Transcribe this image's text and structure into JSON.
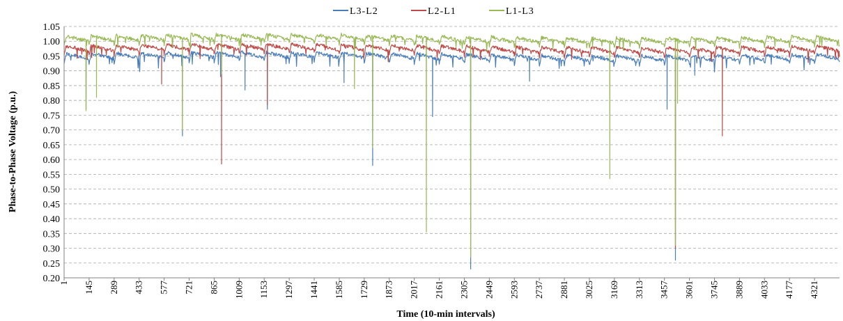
{
  "chart_data": {
    "type": "line",
    "title": "",
    "xlabel": "Time (10-min intervals)",
    "ylabel": "Phase-to-Phase Voltage (p.u.)",
    "xlim": [
      1,
      4465
    ],
    "ylim": [
      0.2,
      1.05
    ],
    "yticks": [
      1.05,
      1.0,
      0.95,
      0.9,
      0.85,
      0.8,
      0.75,
      0.7,
      0.65,
      0.6,
      0.55,
      0.5,
      0.45,
      0.4,
      0.35,
      0.3,
      0.25,
      0.2
    ],
    "ytick_labels": [
      "1.05",
      "1.00",
      "0.95",
      "0.90",
      "0.85",
      "0.80",
      "0.75",
      "0.70",
      "0.65",
      "0.60",
      "0.55",
      "0.50",
      "0.45",
      "0.40",
      "0.35",
      "0.30",
      "0.25",
      "0.20"
    ],
    "xticks": [
      1,
      145,
      289,
      433,
      577,
      721,
      865,
      1009,
      1153,
      1297,
      1441,
      1585,
      1729,
      1873,
      2017,
      2161,
      2305,
      2449,
      2593,
      2737,
      2881,
      3025,
      3169,
      3313,
      3457,
      3601,
      3745,
      3889,
      4033,
      4177,
      4321
    ],
    "xtick_labels": [
      "1",
      "145",
      "289",
      "433",
      "577",
      "721",
      "865",
      "1009",
      "1153",
      "1297",
      "1441",
      "1585",
      "1729",
      "1873",
      "2017",
      "2161",
      "2305",
      "2449",
      "2593",
      "2737",
      "2881",
      "3025",
      "3169",
      "3313",
      "3457",
      "3601",
      "3745",
      "3889",
      "4033",
      "4177",
      "4321"
    ],
    "grid": "horizontal-dashed",
    "legend_position": "top-center",
    "series": [
      {
        "name": "L3-L2",
        "color": "#4a7ebb",
        "base": 0.945,
        "daily_amp": 0.02,
        "dips": [
          [
            125,
            0.77
          ],
          [
            680,
            0.68
          ],
          [
            900,
            0.88
          ],
          [
            1040,
            0.835
          ],
          [
            1170,
            0.77
          ],
          [
            1610,
            0.86
          ],
          [
            1775,
            0.58
          ],
          [
            2120,
            0.745
          ],
          [
            2340,
            0.23
          ],
          [
            2680,
            0.865
          ],
          [
            3470,
            0.77
          ],
          [
            3520,
            0.26
          ],
          [
            3630,
            0.885
          ]
        ]
      },
      {
        "name": "L2-L1",
        "color": "#be4b48",
        "base": 0.972,
        "daily_amp": 0.02,
        "dips": [
          [
            560,
            0.855
          ],
          [
            905,
            0.585
          ],
          [
            1170,
            0.785
          ],
          [
            3520,
            0.3
          ],
          [
            3790,
            0.68
          ]
        ]
      },
      {
        "name": "L1-L3",
        "color": "#98b954",
        "base": 1.005,
        "daily_amp": 0.02,
        "dips": [
          [
            125,
            0.765
          ],
          [
            185,
            0.81
          ],
          [
            680,
            0.7
          ],
          [
            905,
            0.89
          ],
          [
            1670,
            0.84
          ],
          [
            1775,
            0.64
          ],
          [
            2085,
            0.355
          ],
          [
            2340,
            0.27
          ],
          [
            3140,
            0.535
          ],
          [
            3520,
            0.31
          ],
          [
            3530,
            0.79
          ]
        ]
      }
    ]
  }
}
